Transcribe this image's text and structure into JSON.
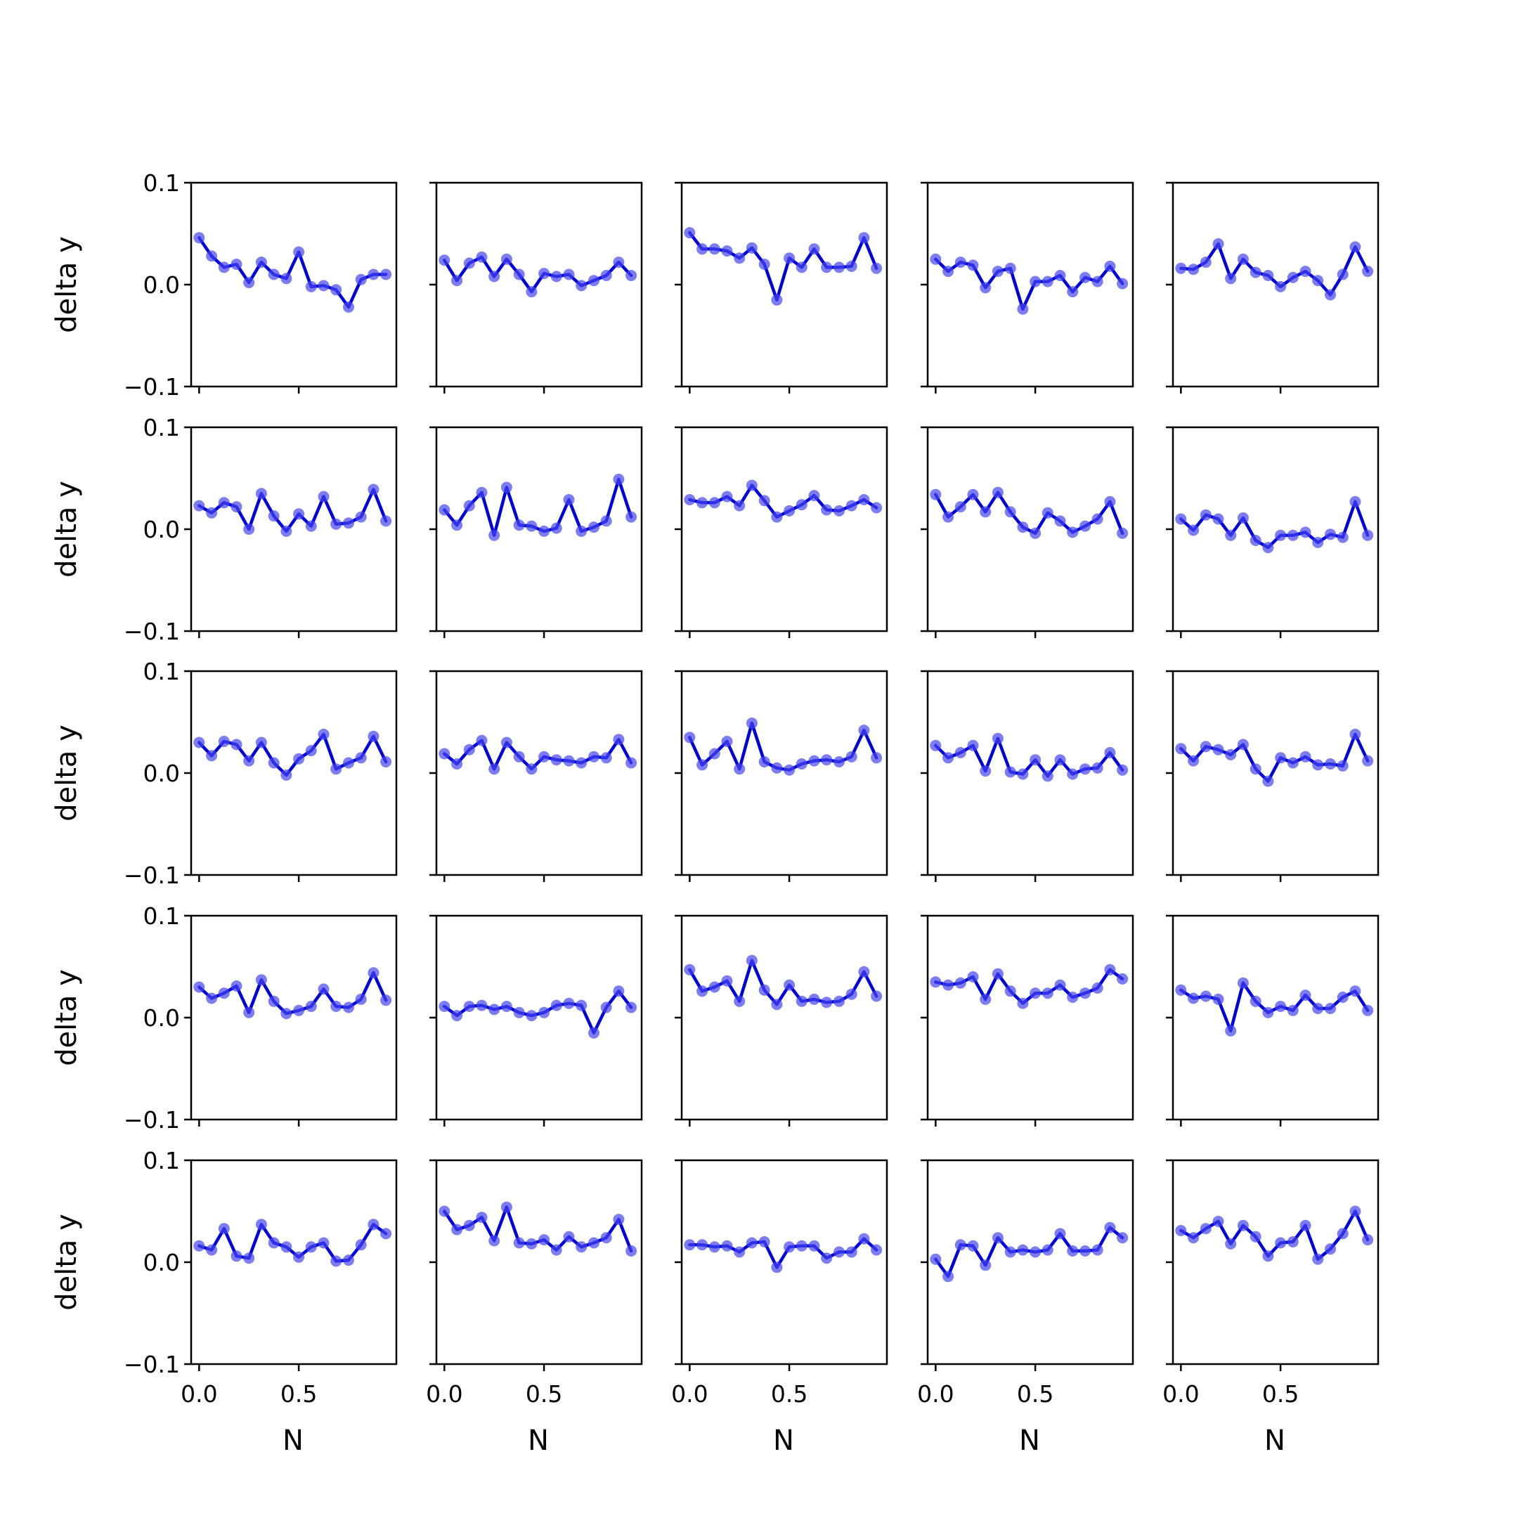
{
  "figure": {
    "rows": 5,
    "cols": 5,
    "line_color": "#0000dd",
    "marker_color": "#4444ee",
    "axes_color": "#000000",
    "background": "#ffffff"
  },
  "chart_data": {
    "type": "line",
    "layout": "small-multiples 5x5",
    "grid": false,
    "legend": "none",
    "xlabel": "N",
    "ylabel": "delta y",
    "xlim": [
      -0.04,
      0.99
    ],
    "ylim": [
      -0.1,
      0.1
    ],
    "xticks": [
      0.0,
      0.5
    ],
    "xtick_labels": [
      "0.0",
      "0.5"
    ],
    "yticks": [
      -0.1,
      0.0,
      0.1
    ],
    "ytick_labels": [
      "−0.1",
      "0.0",
      "0.1"
    ],
    "x": [
      0.0,
      0.0625,
      0.125,
      0.1875,
      0.25,
      0.3125,
      0.375,
      0.4375,
      0.5,
      0.5625,
      0.625,
      0.6875,
      0.75,
      0.8125,
      0.875,
      0.9375
    ],
    "panels": [
      {
        "row": 0,
        "col": 0,
        "y": [
          0.046,
          0.028,
          0.017,
          0.02,
          0.002,
          0.022,
          0.01,
          0.006,
          0.032,
          -0.002,
          -0.001,
          -0.005,
          -0.022,
          0.005,
          0.01,
          0.01
        ]
      },
      {
        "row": 0,
        "col": 1,
        "y": [
          0.024,
          0.004,
          0.021,
          0.027,
          0.008,
          0.025,
          0.01,
          -0.007,
          0.011,
          0.008,
          0.01,
          -0.001,
          0.004,
          0.009,
          0.022,
          0.009
        ]
      },
      {
        "row": 0,
        "col": 2,
        "y": [
          0.051,
          0.035,
          0.035,
          0.033,
          0.026,
          0.036,
          0.02,
          -0.015,
          0.026,
          0.017,
          0.035,
          0.017,
          0.017,
          0.018,
          0.046,
          0.016
        ]
      },
      {
        "row": 0,
        "col": 3,
        "y": [
          0.025,
          0.013,
          0.022,
          0.019,
          -0.003,
          0.013,
          0.016,
          -0.024,
          0.003,
          0.003,
          0.009,
          -0.007,
          0.007,
          0.003,
          0.018,
          0.001
        ]
      },
      {
        "row": 0,
        "col": 4,
        "y": [
          0.016,
          0.015,
          0.022,
          0.04,
          0.006,
          0.025,
          0.012,
          0.009,
          -0.002,
          0.007,
          0.013,
          0.004,
          -0.01,
          0.01,
          0.037,
          0.013
        ]
      },
      {
        "row": 1,
        "col": 0,
        "y": [
          0.023,
          0.016,
          0.026,
          0.022,
          0.0,
          0.035,
          0.013,
          -0.002,
          0.015,
          0.003,
          0.032,
          0.005,
          0.006,
          0.012,
          0.039,
          0.008
        ]
      },
      {
        "row": 1,
        "col": 1,
        "y": [
          0.019,
          0.004,
          0.023,
          0.036,
          -0.006,
          0.041,
          0.004,
          0.003,
          -0.002,
          0.001,
          0.029,
          -0.002,
          0.002,
          0.008,
          0.049,
          0.012
        ]
      },
      {
        "row": 1,
        "col": 2,
        "y": [
          0.029,
          0.026,
          0.026,
          0.032,
          0.023,
          0.043,
          0.028,
          0.012,
          0.018,
          0.024,
          0.033,
          0.019,
          0.018,
          0.023,
          0.029,
          0.021
        ]
      },
      {
        "row": 1,
        "col": 3,
        "y": [
          0.034,
          0.012,
          0.022,
          0.034,
          0.017,
          0.036,
          0.017,
          0.002,
          -0.004,
          0.016,
          0.008,
          -0.003,
          0.003,
          0.01,
          0.027,
          -0.004
        ]
      },
      {
        "row": 1,
        "col": 4,
        "y": [
          0.01,
          -0.001,
          0.014,
          0.01,
          -0.006,
          0.011,
          -0.011,
          -0.018,
          -0.006,
          -0.006,
          -0.003,
          -0.013,
          -0.005,
          -0.008,
          0.027,
          -0.006
        ]
      },
      {
        "row": 2,
        "col": 0,
        "y": [
          0.03,
          0.017,
          0.031,
          0.028,
          0.012,
          0.03,
          0.01,
          -0.002,
          0.014,
          0.022,
          0.038,
          0.004,
          0.01,
          0.015,
          0.036,
          0.011
        ]
      },
      {
        "row": 2,
        "col": 1,
        "y": [
          0.019,
          0.009,
          0.023,
          0.032,
          0.004,
          0.03,
          0.016,
          0.004,
          0.016,
          0.013,
          0.012,
          0.01,
          0.016,
          0.015,
          0.033,
          0.01
        ]
      },
      {
        "row": 2,
        "col": 2,
        "y": [
          0.035,
          0.008,
          0.019,
          0.031,
          0.004,
          0.049,
          0.011,
          0.005,
          0.003,
          0.009,
          0.012,
          0.013,
          0.011,
          0.016,
          0.042,
          0.015
        ]
      },
      {
        "row": 2,
        "col": 3,
        "y": [
          0.027,
          0.015,
          0.02,
          0.027,
          0.002,
          0.034,
          0.001,
          -0.001,
          0.013,
          -0.003,
          0.013,
          -0.001,
          0.004,
          0.005,
          0.02,
          0.003
        ]
      },
      {
        "row": 2,
        "col": 4,
        "y": [
          0.024,
          0.012,
          0.026,
          0.023,
          0.018,
          0.028,
          0.004,
          -0.008,
          0.015,
          0.01,
          0.016,
          0.008,
          0.009,
          0.007,
          0.038,
          0.012
        ]
      },
      {
        "row": 3,
        "col": 0,
        "y": [
          0.03,
          0.019,
          0.024,
          0.031,
          0.005,
          0.037,
          0.016,
          0.004,
          0.007,
          0.011,
          0.028,
          0.011,
          0.01,
          0.018,
          0.044,
          0.017
        ]
      },
      {
        "row": 3,
        "col": 1,
        "y": [
          0.011,
          0.002,
          0.011,
          0.012,
          0.008,
          0.011,
          0.005,
          0.002,
          0.005,
          0.012,
          0.014,
          0.012,
          -0.015,
          0.01,
          0.026,
          0.01
        ]
      },
      {
        "row": 3,
        "col": 2,
        "y": [
          0.047,
          0.026,
          0.03,
          0.036,
          0.016,
          0.056,
          0.027,
          0.013,
          0.032,
          0.016,
          0.018,
          0.015,
          0.016,
          0.023,
          0.045,
          0.021
        ]
      },
      {
        "row": 3,
        "col": 3,
        "y": [
          0.035,
          0.032,
          0.034,
          0.04,
          0.018,
          0.043,
          0.026,
          0.014,
          0.024,
          0.024,
          0.032,
          0.02,
          0.024,
          0.029,
          0.047,
          0.038
        ]
      },
      {
        "row": 3,
        "col": 4,
        "y": [
          0.027,
          0.019,
          0.021,
          0.018,
          -0.013,
          0.034,
          0.016,
          0.005,
          0.011,
          0.007,
          0.022,
          0.009,
          0.009,
          0.02,
          0.026,
          0.007
        ]
      },
      {
        "row": 4,
        "col": 0,
        "y": [
          0.016,
          0.012,
          0.033,
          0.006,
          0.004,
          0.037,
          0.019,
          0.015,
          0.005,
          0.015,
          0.019,
          0.001,
          0.002,
          0.017,
          0.037,
          0.028
        ]
      },
      {
        "row": 4,
        "col": 1,
        "y": [
          0.05,
          0.032,
          0.036,
          0.044,
          0.021,
          0.054,
          0.019,
          0.018,
          0.022,
          0.012,
          0.025,
          0.015,
          0.019,
          0.024,
          0.042,
          0.011
        ]
      },
      {
        "row": 4,
        "col": 2,
        "y": [
          0.017,
          0.017,
          0.015,
          0.016,
          0.01,
          0.019,
          0.02,
          -0.005,
          0.015,
          0.016,
          0.016,
          0.004,
          0.01,
          0.01,
          0.023,
          0.012
        ]
      },
      {
        "row": 4,
        "col": 3,
        "y": [
          0.003,
          -0.014,
          0.017,
          0.016,
          -0.003,
          0.024,
          0.01,
          0.012,
          0.01,
          0.012,
          0.028,
          0.011,
          0.011,
          0.012,
          0.034,
          0.024
        ]
      },
      {
        "row": 4,
        "col": 4,
        "y": [
          0.031,
          0.024,
          0.033,
          0.04,
          0.018,
          0.036,
          0.025,
          0.006,
          0.019,
          0.02,
          0.036,
          0.003,
          0.013,
          0.028,
          0.05,
          0.022
        ]
      }
    ]
  }
}
